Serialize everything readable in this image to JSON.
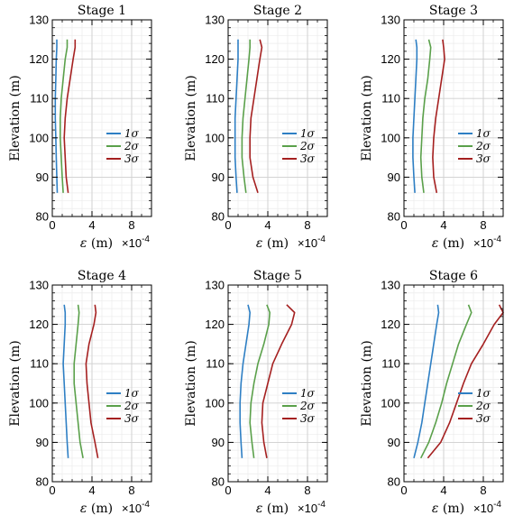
{
  "chart_data": [
    {
      "type": "line",
      "title": "Stage 1",
      "xlabel": "ε (m)",
      "xscale": "×10^-4",
      "ylabel": "Elevation (m)",
      "xlim": [
        0,
        10
      ],
      "ylim": [
        80,
        130
      ],
      "xticks": [
        "0",
        "4",
        "8"
      ],
      "yticks": [
        "80",
        "90",
        "100",
        "110",
        "120",
        "130"
      ],
      "grid": true,
      "legend_position": "right",
      "series": [
        {
          "name": "1σ",
          "color": "#2e7fc4",
          "x": [
            0.5,
            0.45,
            0.4,
            0.35,
            0.3,
            0.3,
            0.35,
            0.4,
            0.45,
            0.45
          ],
          "y": [
            86,
            90,
            95,
            100,
            105,
            110,
            115,
            120,
            123,
            125
          ]
        },
        {
          "name": "2σ",
          "color": "#5aa04a",
          "x": [
            1.1,
            1.0,
            0.9,
            0.8,
            0.8,
            0.9,
            1.1,
            1.3,
            1.5,
            1.5
          ],
          "y": [
            86,
            90,
            95,
            100,
            105,
            110,
            115,
            120,
            123,
            125
          ]
        },
        {
          "name": "3σ",
          "color": "#a52020",
          "x": [
            1.6,
            1.4,
            1.3,
            1.2,
            1.3,
            1.5,
            1.8,
            2.1,
            2.3,
            2.3
          ],
          "y": [
            86,
            90,
            95,
            100,
            105,
            110,
            115,
            120,
            123,
            125
          ]
        }
      ]
    },
    {
      "type": "line",
      "title": "Stage 2",
      "xlabel": "ε (m)",
      "xscale": "×10^-4",
      "ylabel": "Elevation (m)",
      "xlim": [
        0,
        10
      ],
      "ylim": [
        80,
        130
      ],
      "xticks": [
        "0",
        "4",
        "8"
      ],
      "yticks": [
        "80",
        "90",
        "100",
        "110",
        "120",
        "130"
      ],
      "grid": true,
      "legend_position": "right",
      "series": [
        {
          "name": "1σ",
          "color": "#2e7fc4",
          "x": [
            0.9,
            0.8,
            0.7,
            0.7,
            0.7,
            0.8,
            0.9,
            1.0,
            1.0,
            1.0
          ],
          "y": [
            86,
            90,
            95,
            100,
            105,
            110,
            115,
            120,
            123,
            125
          ]
        },
        {
          "name": "2σ",
          "color": "#5aa04a",
          "x": [
            1.8,
            1.6,
            1.4,
            1.4,
            1.5,
            1.7,
            1.9,
            2.1,
            2.2,
            2.2
          ],
          "y": [
            86,
            90,
            95,
            100,
            105,
            110,
            115,
            120,
            123,
            125
          ]
        },
        {
          "name": "3σ",
          "color": "#a52020",
          "x": [
            3.0,
            2.5,
            2.2,
            2.2,
            2.3,
            2.6,
            2.9,
            3.2,
            3.4,
            3.2
          ],
          "y": [
            86,
            90,
            95,
            100,
            105,
            110,
            115,
            120,
            123,
            125
          ]
        }
      ]
    },
    {
      "type": "line",
      "title": "Stage 3",
      "xlabel": "ε (m)",
      "xscale": "×10^-4",
      "ylabel": "Elevation (m)",
      "xlim": [
        0,
        10
      ],
      "ylim": [
        80,
        130
      ],
      "xticks": [
        "0",
        "4",
        "8"
      ],
      "yticks": [
        "80",
        "90",
        "100",
        "110",
        "120",
        "130"
      ],
      "grid": true,
      "legend_position": "right",
      "series": [
        {
          "name": "1σ",
          "color": "#2e7fc4",
          "x": [
            1.1,
            1.0,
            0.9,
            0.9,
            1.0,
            1.1,
            1.2,
            1.3,
            1.3,
            1.2
          ],
          "y": [
            86,
            90,
            95,
            100,
            105,
            110,
            115,
            120,
            123,
            125
          ]
        },
        {
          "name": "2σ",
          "color": "#5aa04a",
          "x": [
            2.0,
            1.8,
            1.7,
            1.8,
            1.9,
            2.1,
            2.4,
            2.6,
            2.7,
            2.5
          ],
          "y": [
            86,
            90,
            95,
            100,
            105,
            110,
            115,
            120,
            123,
            125
          ]
        },
        {
          "name": "3σ",
          "color": "#a52020",
          "x": [
            3.3,
            3.0,
            2.9,
            3.0,
            3.2,
            3.5,
            3.8,
            4.1,
            4.0,
            3.9
          ],
          "y": [
            86,
            90,
            95,
            100,
            105,
            110,
            115,
            120,
            123,
            125
          ]
        }
      ]
    },
    {
      "type": "line",
      "title": "Stage 4",
      "xlabel": "ε (m)",
      "xscale": "×10^-4",
      "ylabel": "Elevation (m)",
      "xlim": [
        0,
        10
      ],
      "ylim": [
        80,
        130
      ],
      "xticks": [
        "0",
        "4",
        "8"
      ],
      "yticks": [
        "80",
        "90",
        "100",
        "110",
        "120",
        "130"
      ],
      "grid": true,
      "legend_position": "bottom-right",
      "series": [
        {
          "name": "1σ",
          "color": "#2e7fc4",
          "x": [
            1.6,
            1.5,
            1.4,
            1.3,
            1.2,
            1.1,
            1.2,
            1.3,
            1.3,
            1.2
          ],
          "y": [
            86,
            90,
            95,
            100,
            105,
            110,
            115,
            120,
            123,
            125
          ]
        },
        {
          "name": "2σ",
          "color": "#5aa04a",
          "x": [
            3.1,
            2.8,
            2.6,
            2.4,
            2.2,
            2.2,
            2.4,
            2.6,
            2.7,
            2.6
          ],
          "y": [
            86,
            90,
            95,
            100,
            105,
            110,
            115,
            120,
            123,
            125
          ]
        },
        {
          "name": "3σ",
          "color": "#a52020",
          "x": [
            4.6,
            4.3,
            3.9,
            3.7,
            3.5,
            3.4,
            3.7,
            4.2,
            4.4,
            4.3
          ],
          "y": [
            86,
            90,
            95,
            100,
            105,
            110,
            115,
            120,
            123,
            125
          ]
        }
      ]
    },
    {
      "type": "line",
      "title": "Stage 5",
      "xlabel": "ε (m)",
      "xscale": "×10^-4",
      "ylabel": "Elevation (m)",
      "xlim": [
        0,
        10
      ],
      "ylim": [
        80,
        130
      ],
      "xticks": [
        "0",
        "4",
        "8"
      ],
      "yticks": [
        "80",
        "90",
        "100",
        "110",
        "120",
        "130"
      ],
      "grid": true,
      "legend_position": "bottom-right",
      "series": [
        {
          "name": "1σ",
          "color": "#2e7fc4",
          "x": [
            1.4,
            1.3,
            1.2,
            1.2,
            1.3,
            1.5,
            1.8,
            2.1,
            2.2,
            2.0
          ],
          "y": [
            86,
            90,
            95,
            100,
            105,
            110,
            115,
            120,
            123,
            125
          ]
        },
        {
          "name": "2σ",
          "color": "#5aa04a",
          "x": [
            2.6,
            2.4,
            2.2,
            2.3,
            2.6,
            3.0,
            3.6,
            4.1,
            4.2,
            3.9
          ],
          "y": [
            86,
            90,
            95,
            100,
            105,
            110,
            115,
            120,
            123,
            125
          ]
        },
        {
          "name": "3σ",
          "color": "#a52020",
          "x": [
            3.9,
            3.6,
            3.4,
            3.5,
            4.0,
            4.5,
            5.4,
            6.4,
            6.7,
            5.9
          ],
          "y": [
            86,
            90,
            95,
            100,
            105,
            110,
            115,
            120,
            123,
            125
          ]
        }
      ]
    },
    {
      "type": "line",
      "title": "Stage 6",
      "xlabel": "ε (m)",
      "xscale": "×10^-4",
      "ylabel": "Elevation (m)",
      "xlim": [
        0,
        10
      ],
      "ylim": [
        80,
        130
      ],
      "xticks": [
        "0",
        "4",
        "8"
      ],
      "yticks": [
        "80",
        "90",
        "100",
        "110",
        "120",
        "130"
      ],
      "grid": true,
      "legend_position": "bottom-right",
      "series": [
        {
          "name": "1σ",
          "color": "#2e7fc4",
          "x": [
            1.0,
            1.4,
            1.8,
            2.1,
            2.4,
            2.7,
            3.0,
            3.3,
            3.5,
            3.4
          ],
          "y": [
            86,
            90,
            95,
            100,
            105,
            110,
            115,
            120,
            123,
            125
          ]
        },
        {
          "name": "2σ",
          "color": "#5aa04a",
          "x": [
            1.7,
            2.5,
            3.2,
            3.8,
            4.3,
            4.9,
            5.5,
            6.3,
            6.8,
            6.5
          ],
          "y": [
            86,
            90,
            95,
            100,
            105,
            110,
            115,
            120,
            123,
            125
          ]
        },
        {
          "name": "3σ",
          "color": "#a52020",
          "x": [
            2.4,
            3.7,
            4.6,
            5.3,
            6.0,
            6.8,
            8.0,
            9.1,
            10.0,
            9.6
          ],
          "y": [
            86,
            90,
            95,
            100,
            105,
            110,
            115,
            120,
            123,
            125
          ]
        }
      ]
    }
  ]
}
